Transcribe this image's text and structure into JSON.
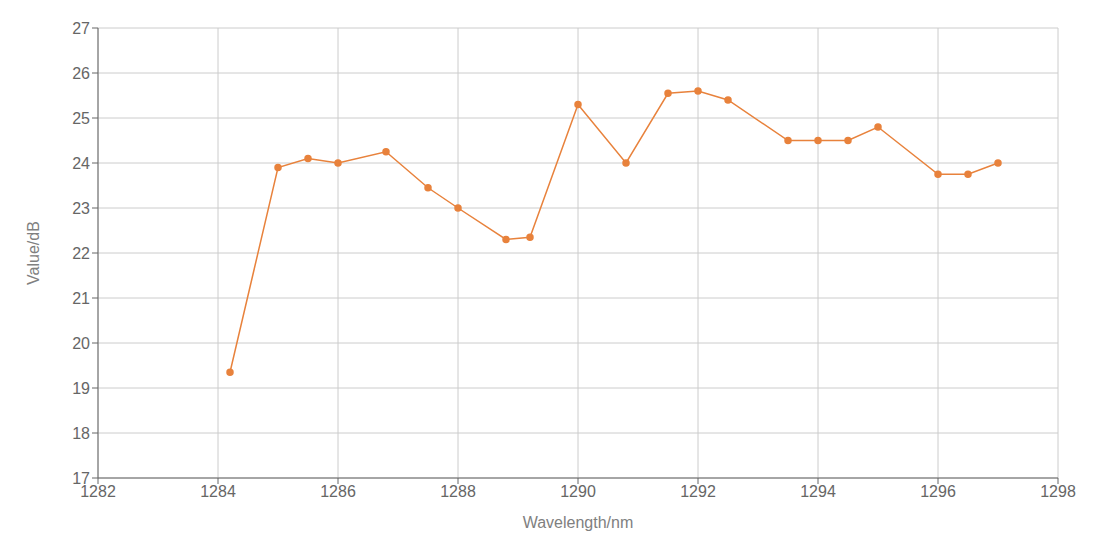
{
  "chart_data": {
    "type": "line",
    "xlabel": "Wavelength/nm",
    "ylabel": "Value/dB",
    "x": [
      1284.2,
      1285.0,
      1285.5,
      1286.0,
      1286.8,
      1287.5,
      1288.0,
      1288.8,
      1289.2,
      1290.0,
      1290.8,
      1291.5,
      1292.0,
      1292.5,
      1293.5,
      1294.0,
      1294.5,
      1295.0,
      1296.0,
      1296.5,
      1297.0
    ],
    "values": [
      19.35,
      23.9,
      24.1,
      24.0,
      24.25,
      23.45,
      23.0,
      22.3,
      22.35,
      25.3,
      24.0,
      25.55,
      25.6,
      25.4,
      24.5,
      24.5,
      24.5,
      24.8,
      23.75,
      23.75,
      24.0
    ],
    "color": "#E8823C",
    "marker": "circle",
    "xlim": [
      1282,
      1298
    ],
    "ylim": [
      17,
      27
    ],
    "xticks": [
      1282,
      1284,
      1286,
      1288,
      1290,
      1292,
      1294,
      1296,
      1298
    ],
    "yticks": [
      17,
      18,
      19,
      20,
      21,
      22,
      23,
      24,
      25,
      26,
      27
    ],
    "grid": true
  }
}
